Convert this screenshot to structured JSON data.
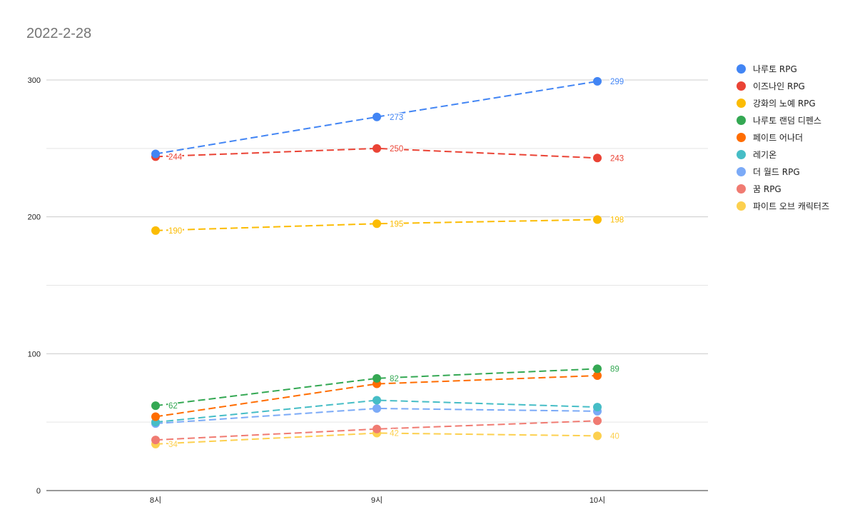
{
  "chart_data": {
    "type": "line",
    "title": "2022-2-28",
    "categories": [
      "8시",
      "9시",
      "10시"
    ],
    "ylim": [
      0,
      300
    ],
    "yticks": [
      0,
      100,
      200,
      300
    ],
    "grid": true,
    "legend_position": "right",
    "line_style": "dashed",
    "series": [
      {
        "name": "나루토 RPG",
        "color": "#4285f4",
        "values": [
          246,
          273,
          299
        ],
        "labels": [
          "",
          "273",
          "299"
        ]
      },
      {
        "name": "이즈나인 RPG",
        "color": "#ea4335",
        "values": [
          244,
          250,
          243
        ],
        "labels": [
          "244",
          "250",
          "243"
        ]
      },
      {
        "name": "강화의 노예 RPG",
        "color": "#fbbc04",
        "values": [
          190,
          195,
          198
        ],
        "labels": [
          "190",
          "195",
          "198"
        ]
      },
      {
        "name": "나루토 랜덤 디펜스",
        "color": "#34a853",
        "values": [
          62,
          82,
          89
        ],
        "labels": [
          "62",
          "82",
          "89"
        ]
      },
      {
        "name": "페이트 어나더",
        "color": "#ff6d01",
        "values": [
          54,
          78,
          84
        ],
        "labels": [
          "",
          "",
          ""
        ]
      },
      {
        "name": "레기온",
        "color": "#46bdc6",
        "values": [
          50,
          66,
          61
        ],
        "labels": [
          "",
          "",
          ""
        ]
      },
      {
        "name": "더 월드 RPG",
        "color": "#7baaf7",
        "values": [
          49,
          60,
          58
        ],
        "labels": [
          "",
          "",
          ""
        ]
      },
      {
        "name": "꿈 RPG",
        "color": "#f07b72",
        "values": [
          37,
          45,
          51
        ],
        "labels": [
          "",
          "",
          ""
        ]
      },
      {
        "name": "파이트 오브 캐릭터즈",
        "color": "#fcd04f",
        "values": [
          34,
          42,
          40
        ],
        "labels": [
          "34",
          "42",
          "40"
        ]
      }
    ]
  }
}
